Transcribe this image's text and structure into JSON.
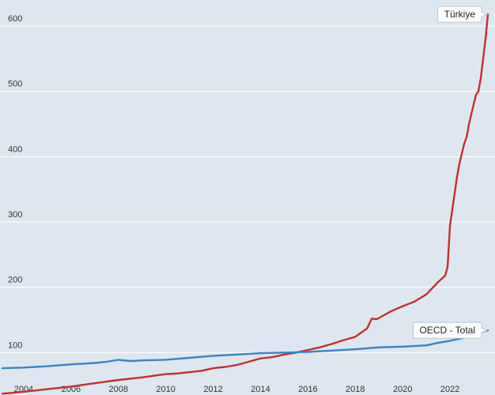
{
  "chart_data": {
    "type": "line",
    "title": "",
    "xlabel": "",
    "ylabel": "",
    "xlim": [
      2003,
      2023.9
    ],
    "ylim": [
      35,
      640
    ],
    "x_ticks": [
      "2004",
      "2006",
      "2008",
      "2010",
      "2012",
      "2014",
      "2016",
      "2018",
      "2020",
      "2022"
    ],
    "y_ticks": [
      "100",
      "200",
      "300",
      "400",
      "500",
      "600"
    ],
    "grid": true,
    "legend": "none; series labelled by callouts at line ends",
    "series": [
      {
        "name": "Türkiye",
        "color": "#c0312f",
        "x": [
          2003.1,
          2004,
          2005,
          2006,
          2007,
          2008,
          2009,
          2010,
          2010.5,
          2011,
          2011.5,
          2012,
          2012.5,
          2013,
          2013.5,
          2014,
          2014.5,
          2015,
          2015.5,
          2016,
          2016.5,
          2017,
          2017.5,
          2018,
          2018.5,
          2018.7,
          2018.9,
          2019,
          2019.5,
          2020,
          2020.5,
          2021,
          2021.5,
          2021.8,
          2021.9,
          2022,
          2022.1,
          2022.2,
          2022.3,
          2022.4,
          2022.5,
          2022.6,
          2022.7,
          2022.8,
          2022.9,
          2023,
          2023.1,
          2023.2,
          2023.3,
          2023.4,
          2023.5,
          2023.6
        ],
        "values": [
          37,
          40,
          44,
          48,
          53,
          58,
          62,
          67,
          68,
          70,
          72,
          76,
          78,
          81,
          86,
          91,
          93,
          97,
          100,
          104,
          108,
          113,
          119,
          124,
          137,
          152,
          151,
          153,
          163,
          171,
          178,
          189,
          208,
          218,
          232,
          295,
          320,
          345,
          370,
          390,
          405,
          420,
          430,
          450,
          465,
          480,
          495,
          500,
          520,
          550,
          580,
          618
        ]
      },
      {
        "name": "OECD - Total",
        "color": "#3b84c4",
        "x": [
          2003.1,
          2004,
          2005,
          2006,
          2007,
          2007.5,
          2008,
          2008.5,
          2009,
          2010,
          2011,
          2012,
          2013,
          2014,
          2015,
          2016,
          2017,
          2018,
          2019,
          2020,
          2021,
          2021.5,
          2022,
          2022.5,
          2023,
          2023.6
        ],
        "values": [
          76,
          77,
          79,
          82,
          84,
          86,
          89,
          87,
          88,
          89,
          92,
          95,
          97,
          99,
          100,
          101,
          103,
          105,
          108,
          109,
          111,
          115,
          118,
          122,
          128,
          134
        ]
      }
    ],
    "annotations": [
      {
        "series": "Türkiye",
        "text": "Türkiye",
        "placement": "left-of-line-end"
      },
      {
        "series": "OECD - Total",
        "text": "OECD - Total",
        "placement": "left-of-line-end"
      }
    ]
  }
}
